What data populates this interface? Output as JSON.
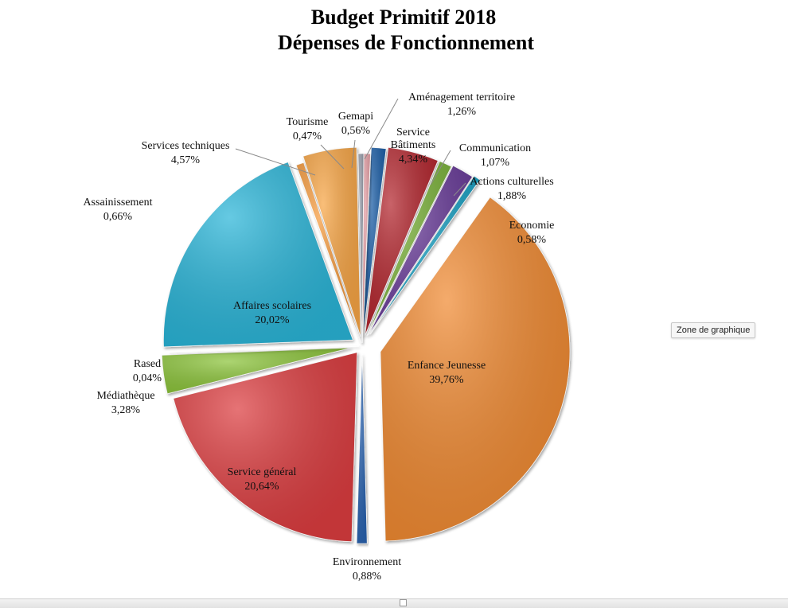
{
  "chart_data": {
    "type": "pie",
    "title": "Budget Primitif 2018",
    "subtitle": "Dépenses de Fonctionnement",
    "slices": [
      {
        "name": "Aménagement territoire",
        "percent_label": "1,26%",
        "value": 1.26,
        "color": "#1f5fa8"
      },
      {
        "name": "Service Bâtiments",
        "percent_label": "4,34%",
        "value": 4.34,
        "color": "#b3262e"
      },
      {
        "name": "Communication",
        "percent_label": "1,07%",
        "value": 1.07,
        "color": "#7db43c"
      },
      {
        "name": "Actions culturelles",
        "percent_label": "1,88%",
        "value": 1.88,
        "color": "#6a3d9a"
      },
      {
        "name": "Economie",
        "percent_label": "0,58%",
        "value": 0.58,
        "color": "#1da2c4"
      },
      {
        "name": "Enfance Jeunesse",
        "percent_label": "39,76%",
        "value": 39.76,
        "color": "#f08a32"
      },
      {
        "name": "Environnement",
        "percent_label": "0,88%",
        "value": 0.88,
        "color": "#2a63b0"
      },
      {
        "name": "Service général",
        "percent_label": "20,64%",
        "value": 20.64,
        "color": "#dc3d40"
      },
      {
        "name": "Médiathèque",
        "percent_label": "3,28%",
        "value": 3.28,
        "color": "#8cc43a"
      },
      {
        "name": "Rased",
        "percent_label": "0,04%",
        "value": 0.04,
        "color": "#6e4a9e"
      },
      {
        "name": "Affaires scolaires",
        "percent_label": "20,02%",
        "value": 20.02,
        "color": "#2bb5d8"
      },
      {
        "name": "Assainissement",
        "percent_label": "0,66%",
        "value": 0.66,
        "color": "#f59a3c"
      },
      {
        "name": "Services techniques",
        "percent_label": "4,57%",
        "value": 4.57,
        "color": "#f7a544"
      },
      {
        "name": "Tourisme",
        "percent_label": "0,47%",
        "value": 0.47,
        "color": "#9aa0ad"
      },
      {
        "name": "Gemapi",
        "percent_label": "0,56%",
        "value": 0.56,
        "color": "#e6a0a6"
      }
    ]
  },
  "tooltip": {
    "text": "Zone de graphique"
  }
}
